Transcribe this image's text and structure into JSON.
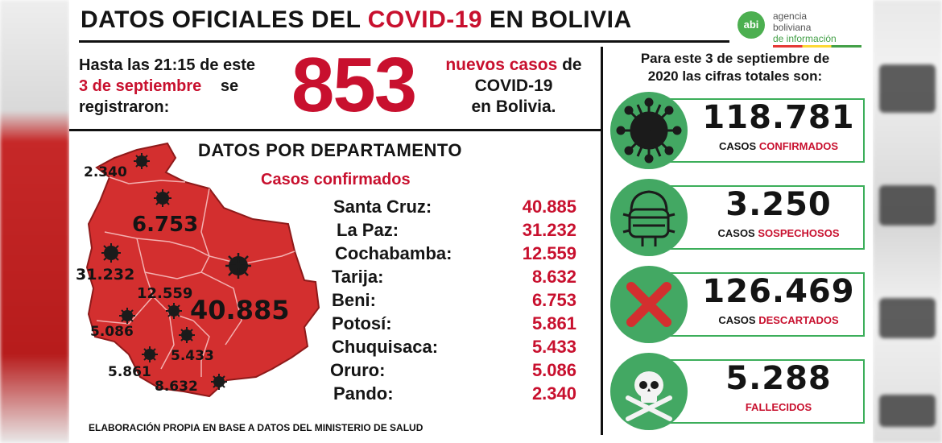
{
  "header": {
    "title_prefix": "DATOS OFICIALES DEL",
    "title_highlight": "COVID-19",
    "title_suffix": "EN BOLIVIA"
  },
  "logo": {
    "mark": "abi",
    "line1": "agencia",
    "line2": "boliviana",
    "line3": "de información"
  },
  "intro": {
    "line1": "Hasta las 21:15 de este",
    "date": "3 de septiembre",
    "se": "se",
    "line3": "registraron:",
    "big_number": "853",
    "new_red": "nuevos casos",
    "new_de": "de",
    "new_line2": "COVID-19",
    "new_line3": "en Bolivia."
  },
  "departments": {
    "title": "DATOS POR DEPARTAMENTO",
    "subtitle": "Casos confirmados",
    "rows": [
      {
        "name": "Santa Cruz:",
        "value": "40.885"
      },
      {
        "name": "La Paz:",
        "value": "31.232"
      },
      {
        "name": "Cochabamba:",
        "value": "12.559"
      },
      {
        "name": "Tarija:",
        "value": "8.632"
      },
      {
        "name": "Beni:",
        "value": "6.753"
      },
      {
        "name": "Potosí:",
        "value": "5.861"
      },
      {
        "name": "Chuquisaca:",
        "value": "5.433"
      },
      {
        "name": "Oruro:",
        "value": "5.086"
      },
      {
        "name": "Pando:",
        "value": "2.340"
      }
    ]
  },
  "map_labels": {
    "pando": "2.340",
    "beni": "6.753",
    "la_paz": "31.232",
    "cochabamba": "12.559",
    "santa_cruz": "40.885",
    "oruro": "5.086",
    "chuquisaca": "5.433",
    "potosi": "5.861",
    "tarija": "8.632"
  },
  "footnote": "ELABORACIÓN PROPIA EN BASE A DATOS DEL MINISTERIO DE SALUD",
  "totals": {
    "header_line1": "Para este 3 de septiembre de",
    "header_line2": "2020 las cifras totales son:",
    "items": [
      {
        "icon": "virus-icon",
        "value": "118.781",
        "label_black": "CASOS",
        "label_red": "CONFIRMADOS"
      },
      {
        "icon": "mask-icon",
        "value": "3.250",
        "label_black": "CASOS",
        "label_red": "SOSPECHOSOS"
      },
      {
        "icon": "cross-icon",
        "value": "126.469",
        "label_black": "CASOS",
        "label_red": "DESCARTADOS"
      },
      {
        "icon": "skull-icon",
        "value": "5.288",
        "label_black": "",
        "label_red": "FALLECIDOS"
      }
    ]
  },
  "colors": {
    "accent_red": "#c8102e",
    "accent_green": "#43a863",
    "map_red": "#d32f2f"
  }
}
